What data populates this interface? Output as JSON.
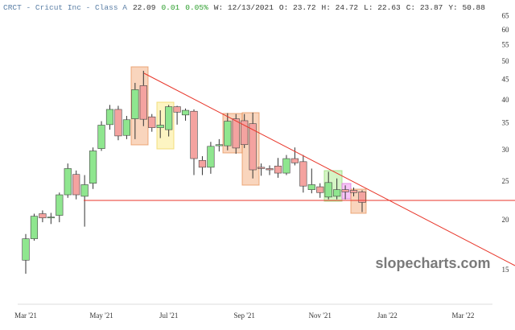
{
  "chart_data": {
    "type": "candlestick",
    "title": "CRCT - Cricut Inc - Class A",
    "header_stats": [
      "22.09",
      "0.01",
      "0.05%",
      "W: 12/13/2021",
      "O: 23.72",
      "H: 24.72",
      "L: 22.63",
      "C: 23.87",
      "Y: 50.88"
    ],
    "watermark": "slopecharts.com",
    "categories": [
      "Mar '21",
      null,
      null,
      null,
      null,
      null,
      null,
      null,
      null,
      "May '21",
      null,
      null,
      null,
      null,
      null,
      null,
      null,
      "Jul '21",
      null,
      null,
      null,
      null,
      null,
      null,
      null,
      null,
      "Sep '21",
      null,
      null,
      null,
      null,
      null,
      null,
      null,
      null,
      "Nov '21",
      null,
      null,
      null,
      null,
      null,
      null,
      null,
      "Jan '22",
      null,
      null,
      null,
      null,
      null,
      null,
      null,
      null,
      "Mar '22",
      null,
      null,
      null
    ],
    "open": [
      15.9,
      18.0,
      20.8,
      20.3,
      20.6,
      23.2,
      26.1,
      23.0,
      24.8,
      30.3,
      34.8,
      38.0,
      32.7,
      36.0,
      43.6,
      36.4,
      34.2,
      33.8,
      38.6,
      36.8,
      37.6,
      28.3,
      27.2,
      30.8,
      30.8,
      36.0,
      35.6,
      35.0,
      27.2,
      27.0,
      27.4,
      26.3,
      28.6,
      28.1,
      23.9,
      24.3,
      22.9,
      23.0,
      23.9,
      23.8,
      23.6,
      null,
      null,
      null,
      null,
      null,
      null,
      null,
      null,
      null,
      null,
      null,
      null,
      null,
      null,
      null
    ],
    "high": [
      18.5,
      20.8,
      21.2,
      20.9,
      23.5,
      27.8,
      26.7,
      26.0,
      30.5,
      35.5,
      39.0,
      38.8,
      36.6,
      44.3,
      47.5,
      37.0,
      37.8,
      39.0,
      38.8,
      38.2,
      38.0,
      29.0,
      31.5,
      32.0,
      37.2,
      37.0,
      37.0,
      37.3,
      27.8,
      27.5,
      28.7,
      29.2,
      30.5,
      29.2,
      27.0,
      24.8,
      26.5,
      25.5,
      24.5,
      24.2,
      23.8,
      null,
      null,
      null,
      null,
      null,
      null,
      null,
      null,
      null,
      null,
      null,
      null,
      null,
      null,
      null
    ],
    "low": [
      14.7,
      17.8,
      19.8,
      19.6,
      19.8,
      22.8,
      22.6,
      19.3,
      24.0,
      29.9,
      33.8,
      31.8,
      32.0,
      32.0,
      34.5,
      33.4,
      32.2,
      32.5,
      34.8,
      35.6,
      26.0,
      26.0,
      26.2,
      29.8,
      30.0,
      29.4,
      30.4,
      25.5,
      25.9,
      26.0,
      25.6,
      26.0,
      27.5,
      23.5,
      23.4,
      22.8,
      22.6,
      22.6,
      22.6,
      23.0,
      21.0,
      null,
      null,
      null,
      null,
      null,
      null,
      null,
      null,
      null,
      null,
      null,
      null,
      null,
      null,
      null
    ],
    "close": [
      18.0,
      20.5,
      20.3,
      20.4,
      23.2,
      27.0,
      23.2,
      24.6,
      29.9,
      34.7,
      38.0,
      32.6,
      35.8,
      42.6,
      35.9,
      34.2,
      34.7,
      38.6,
      37.4,
      37.8,
      28.6,
      27.2,
      30.7,
      31.0,
      35.5,
      30.4,
      31.0,
      26.8,
      27.0,
      26.8,
      26.3,
      28.6,
      27.9,
      24.4,
      24.6,
      23.5,
      24.9,
      23.9,
      23.6,
      23.5,
      22.2,
      null,
      null,
      null,
      null,
      null,
      null,
      null,
      null,
      null,
      null,
      null,
      null,
      null,
      null,
      null
    ],
    "up_color": "#8fe68f",
    "down_color": "#f4a3a0",
    "ylim": [
      12.5,
      67
    ],
    "yticks": [
      15,
      20,
      25,
      30,
      35,
      40,
      45,
      50,
      55,
      60,
      65
    ],
    "log_scale": true
  }
}
